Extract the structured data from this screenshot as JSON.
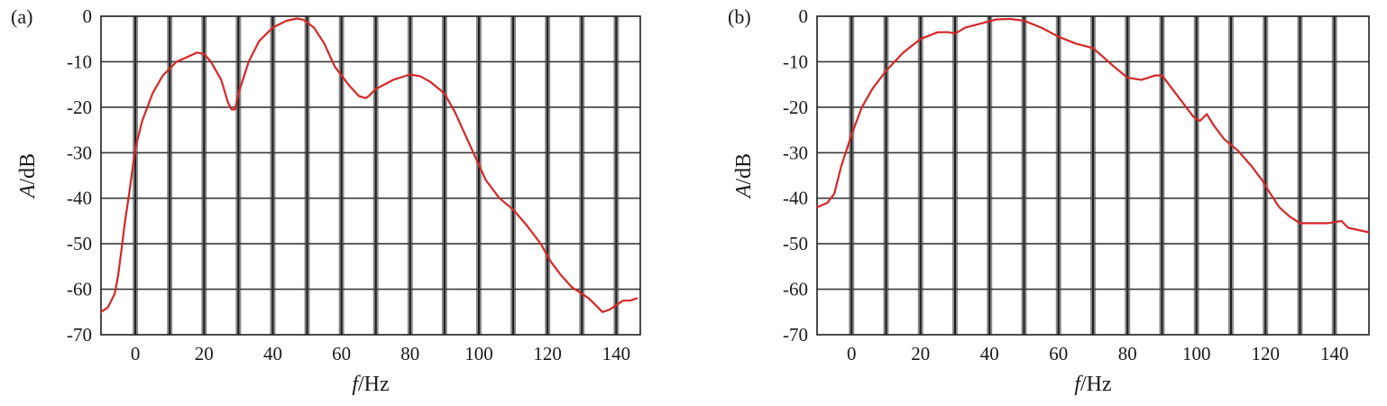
{
  "chart_data": [
    {
      "type": "line",
      "panel_label": "(a)",
      "xlabel_var": "f",
      "xlabel_unit": "/Hz",
      "ylabel_var": "A",
      "ylabel_unit": "/dB",
      "xlim": [
        -10,
        147
      ],
      "ylim": [
        -70,
        0
      ],
      "x_ticks": [
        0,
        20,
        40,
        60,
        80,
        100,
        120,
        140
      ],
      "y_ticks": [
        0,
        -10,
        -20,
        -30,
        -40,
        -50,
        -60,
        -70
      ],
      "x_grid": [
        -10,
        0,
        10,
        20,
        30,
        40,
        50,
        60,
        70,
        80,
        90,
        100,
        110,
        120,
        130,
        140
      ],
      "grid": true,
      "line_color": "#d62728",
      "series": [
        {
          "x": [
            -10,
            -8,
            -6,
            -5,
            -4,
            -3,
            -2,
            0,
            2,
            5,
            8,
            12,
            15,
            18,
            20,
            22,
            25,
            27,
            28,
            29,
            30,
            33,
            36,
            40,
            44,
            47,
            49,
            52,
            55,
            58,
            62,
            65,
            67,
            68,
            70,
            75,
            80,
            83,
            86,
            90,
            93,
            96,
            99,
            102,
            106,
            110,
            114,
            118,
            121,
            124,
            127,
            130,
            132,
            134,
            136,
            138,
            140,
            142,
            144,
            146
          ],
          "y": [
            -65,
            -64,
            -61,
            -57,
            -51,
            -45,
            -40,
            -29,
            -23,
            -17,
            -13,
            -10,
            -9,
            -8,
            -8.3,
            -10,
            -14,
            -19,
            -20.5,
            -20.5,
            -17,
            -10,
            -5.5,
            -2.5,
            -1,
            -0.5,
            -0.8,
            -2.5,
            -6,
            -11,
            -15,
            -17.5,
            -18,
            -17.5,
            -16,
            -14,
            -12.8,
            -13.2,
            -14.5,
            -17,
            -21,
            -26,
            -31,
            -36,
            -40,
            -42.5,
            -46,
            -50,
            -54,
            -57,
            -59.5,
            -61,
            -62,
            -63.5,
            -65,
            -64.5,
            -63.5,
            -62.5,
            -62.5,
            -62
          ]
        }
      ]
    },
    {
      "type": "line",
      "panel_label": "(b)",
      "xlabel_var": "f",
      "xlabel_unit": "/Hz",
      "ylabel_var": "A",
      "ylabel_unit": "/dB",
      "xlim": [
        -10,
        150
      ],
      "ylim": [
        -70,
        0
      ],
      "x_ticks": [
        0,
        20,
        40,
        60,
        80,
        100,
        120,
        140
      ],
      "y_ticks": [
        0,
        -10,
        -20,
        -30,
        -40,
        -50,
        -60,
        -70
      ],
      "x_grid": [
        -10,
        0,
        10,
        20,
        30,
        40,
        50,
        60,
        70,
        80,
        90,
        100,
        110,
        120,
        130,
        140
      ],
      "grid": true,
      "line_color": "#d62728",
      "series": [
        {
          "x": [
            -10,
            -7,
            -5,
            -3,
            0,
            3,
            6,
            10,
            15,
            20,
            25,
            28,
            30,
            33,
            38,
            42,
            46,
            50,
            55,
            60,
            65,
            70,
            73,
            76,
            80,
            84,
            88,
            90,
            93,
            96,
            99,
            101,
            103,
            105,
            108,
            112,
            116,
            119,
            121,
            124,
            127,
            130,
            134,
            138,
            142,
            144,
            147,
            150
          ],
          "y": [
            -42,
            -41,
            -39,
            -33,
            -26,
            -20,
            -16,
            -12,
            -8,
            -5,
            -3.5,
            -3.5,
            -3.8,
            -2.5,
            -1.5,
            -0.7,
            -0.6,
            -1,
            -2.5,
            -4.5,
            -6,
            -7,
            -9,
            -11,
            -13.5,
            -14,
            -13,
            -13,
            -16,
            -19,
            -22,
            -23,
            -21.5,
            -24,
            -27,
            -29.5,
            -33,
            -36,
            -38.5,
            -42,
            -44,
            -45.5,
            -45.5,
            -45.5,
            -45,
            -46.5,
            -47,
            -47.5
          ]
        }
      ]
    }
  ]
}
